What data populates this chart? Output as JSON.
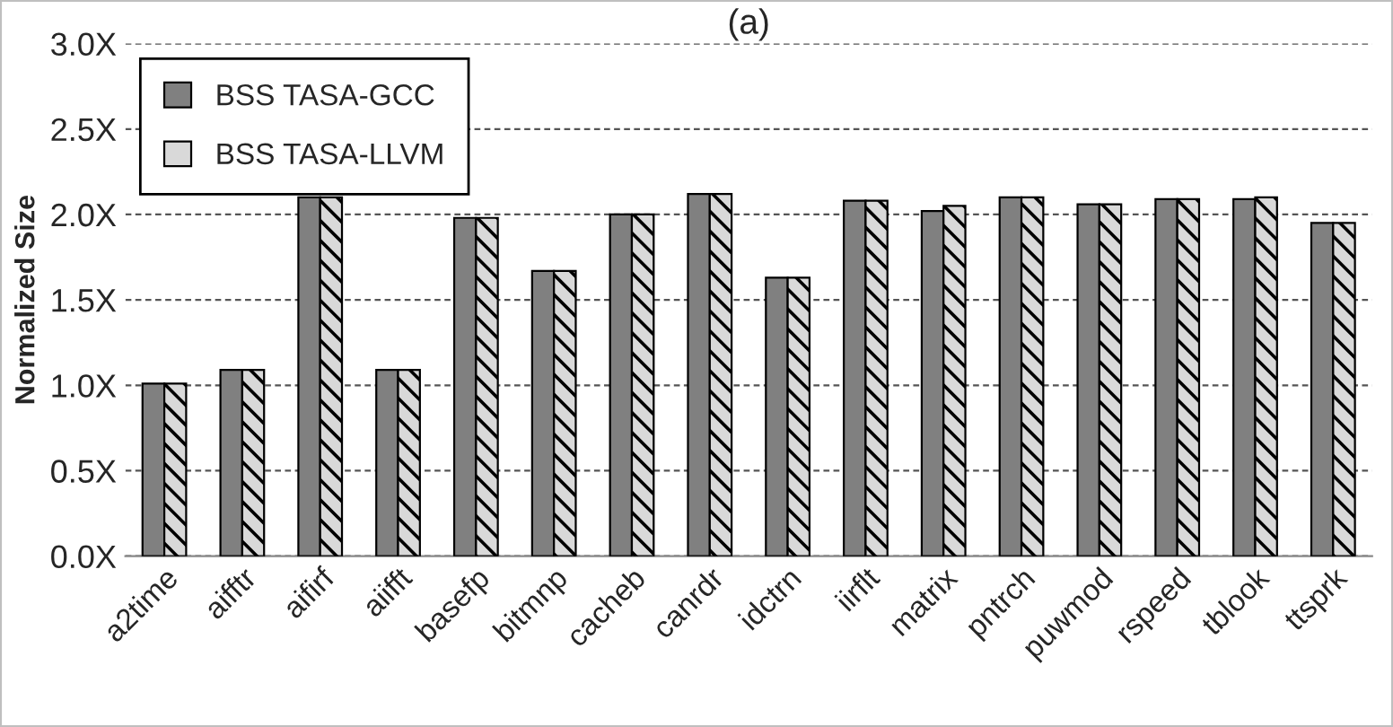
{
  "chart_data": {
    "type": "bar",
    "title": "(a)",
    "ylabel": "Normalized Size",
    "categories": [
      "a2time",
      "aifftr",
      "aifirf",
      "aiifft",
      "basefp",
      "bitmnp",
      "cacheb",
      "canrdr",
      "idctrn",
      "iirflt",
      "matrix",
      "pntrch",
      "puwmod",
      "rspeed",
      "tblook",
      "ttsprk"
    ],
    "series": [
      {
        "name": "BSS TASA-GCC",
        "color": "#808080",
        "values": [
          1.01,
          1.09,
          2.1,
          1.09,
          1.98,
          1.67,
          2.0,
          2.12,
          1.63,
          2.08,
          2.02,
          2.1,
          2.06,
          2.09,
          2.09,
          1.95
        ]
      },
      {
        "name": "BSS TASA-LLVM",
        "color": "#d9d9d9",
        "values": [
          1.01,
          1.09,
          2.1,
          1.09,
          1.98,
          1.67,
          2.0,
          2.12,
          1.63,
          2.08,
          2.05,
          2.1,
          2.06,
          2.09,
          2.1,
          1.95
        ]
      }
    ],
    "ylim": [
      0,
      3
    ],
    "yticks": [
      {
        "value": 0,
        "label": "0.0X"
      },
      {
        "value": 0.5,
        "label": "0.5X"
      },
      {
        "value": 1,
        "label": "1.0X"
      },
      {
        "value": 1.5,
        "label": "1.5X"
      },
      {
        "value": 2,
        "label": "2.0X"
      },
      {
        "value": 2.5,
        "label": "2.5X"
      },
      {
        "value": 3,
        "label": "3.0X"
      }
    ],
    "grid": "y",
    "legend": "top left"
  }
}
